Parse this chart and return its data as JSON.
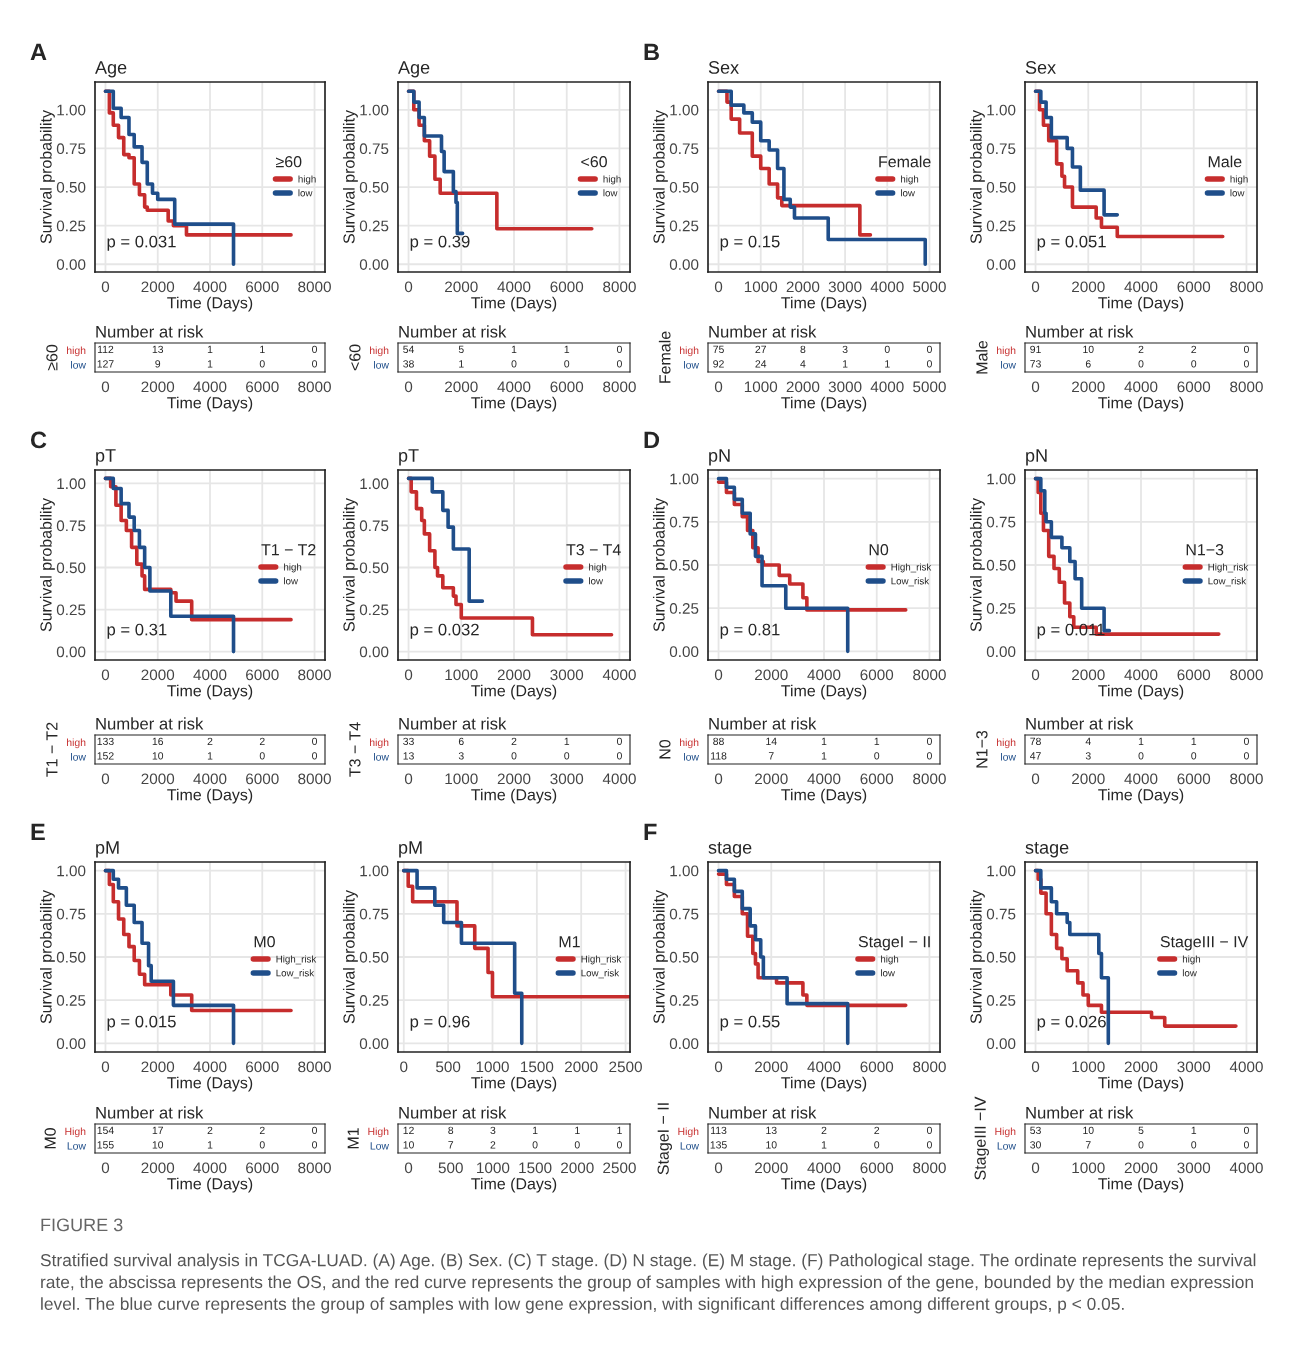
{
  "chart_data": [
    {
      "type": "step",
      "title": "Age",
      "xlabel": "Time (Days)",
      "ylabel": "Survival probability",
      "legend_title": "≥60",
      "legend": "right",
      "grid": true,
      "annotations": [
        "A",
        "p = 0.031"
      ],
      "xlim": [
        -400,
        8400
      ],
      "xticks": [
        0,
        2000,
        4000,
        6000,
        8000
      ],
      "ylim": [
        -0.05,
        1.18
      ],
      "yticks": [
        {
          "value": 0,
          "label": "0.00"
        },
        {
          "value": 0.25,
          "label": "0.25"
        },
        {
          "value": 0.5,
          "label": "0.50"
        },
        {
          "value": 0.75,
          "label": "0.75"
        },
        {
          "value": 1,
          "label": "1.00"
        }
      ],
      "series": [
        {
          "name": "high",
          "color": "#c62d2d",
          "x": [
            0,
            150,
            300,
            500,
            700,
            900,
            1100,
            1300,
            1500,
            1600,
            2400,
            2600,
            3100,
            7100
          ],
          "values": [
            1.12,
            0.98,
            0.9,
            0.82,
            0.71,
            0.69,
            0.52,
            0.45,
            0.37,
            0.35,
            0.28,
            0.25,
            0.19,
            0.19
          ]
        },
        {
          "name": "low",
          "color": "#1f4e8a",
          "x": [
            0,
            300,
            600,
            900,
            1100,
            1400,
            1600,
            1800,
            2000,
            2650,
            4900
          ],
          "values": [
            1.12,
            1.01,
            0.95,
            0.84,
            0.76,
            0.66,
            0.52,
            0.46,
            0.42,
            0.26,
            0
          ]
        }
      ]
    },
    {
      "type": "step",
      "title": "Age",
      "xlabel": "Time (Days)",
      "ylabel": "Survival probability",
      "legend_title": "<60",
      "legend": "right",
      "grid": true,
      "annotations": [
        "p = 0.39"
      ],
      "xlim": [
        -400,
        8400
      ],
      "xticks": [
        0,
        2000,
        4000,
        6000,
        8000
      ],
      "ylim": [
        -0.05,
        1.18
      ],
      "yticks": [
        {
          "value": 0,
          "label": "0.00"
        },
        {
          "value": 0.25,
          "label": "0.25"
        },
        {
          "value": 0.5,
          "label": "0.50"
        },
        {
          "value": 0.75,
          "label": "0.75"
        },
        {
          "value": 1,
          "label": "1.00"
        }
      ],
      "series": [
        {
          "name": "high",
          "color": "#c62d2d",
          "x": [
            0,
            200,
            400,
            600,
            800,
            1000,
            1200,
            3350,
            6950
          ],
          "values": [
            1.12,
            1.0,
            0.9,
            0.8,
            0.7,
            0.55,
            0.46,
            0.23,
            0.23
          ]
        },
        {
          "name": "low",
          "color": "#1f4e8a",
          "x": [
            0,
            200,
            400,
            600,
            1250,
            1350,
            1700,
            1800,
            1850,
            2050
          ],
          "values": [
            1.12,
            1.05,
            0.95,
            0.83,
            0.73,
            0.6,
            0.47,
            0.4,
            0.2,
            0.2
          ]
        }
      ]
    },
    {
      "type": "step",
      "title": "Sex",
      "xlabel": "Time (Days)",
      "ylabel": "Survival probability",
      "legend_title": "Female",
      "legend": "right",
      "grid": true,
      "annotations": [
        "B",
        "p = 0.15"
      ],
      "xlim": [
        -250,
        5250
      ],
      "xticks": [
        0,
        1000,
        2000,
        3000,
        4000,
        5000
      ],
      "ylim": [
        -0.05,
        1.18
      ],
      "yticks": [
        {
          "value": 0,
          "label": "0.00"
        },
        {
          "value": 0.25,
          "label": "0.25"
        },
        {
          "value": 0.5,
          "label": "0.50"
        },
        {
          "value": 0.75,
          "label": "0.75"
        },
        {
          "value": 1,
          "label": "1.00"
        }
      ],
      "series": [
        {
          "name": "high",
          "color": "#c62d2d",
          "x": [
            0,
            200,
            300,
            500,
            800,
            1000,
            1200,
            1400,
            1500,
            3350,
            3600
          ],
          "values": [
            1.12,
            1.05,
            0.94,
            0.85,
            0.7,
            0.62,
            0.52,
            0.43,
            0.38,
            0.19,
            0.19
          ]
        },
        {
          "name": "low",
          "color": "#1f4e8a",
          "x": [
            0,
            300,
            600,
            800,
            1000,
            1200,
            1400,
            1550,
            1700,
            1800,
            2600,
            4900
          ],
          "values": [
            1.12,
            1.03,
            0.98,
            0.92,
            0.8,
            0.74,
            0.62,
            0.42,
            0.37,
            0.3,
            0.16,
            0
          ]
        }
      ]
    },
    {
      "type": "step",
      "title": "Sex",
      "xlabel": "Time (Days)",
      "ylabel": "Survival probability",
      "legend_title": "Male",
      "legend": "right",
      "grid": true,
      "annotations": [
        "p = 0.051"
      ],
      "xlim": [
        -400,
        8400
      ],
      "xticks": [
        0,
        2000,
        4000,
        6000,
        8000
      ],
      "ylim": [
        -0.05,
        1.18
      ],
      "yticks": [
        {
          "value": 0,
          "label": "0.00"
        },
        {
          "value": 0.25,
          "label": "0.25"
        },
        {
          "value": 0.5,
          "label": "0.50"
        },
        {
          "value": 0.75,
          "label": "0.75"
        },
        {
          "value": 1,
          "label": "1.00"
        }
      ],
      "series": [
        {
          "name": "high",
          "color": "#c62d2d",
          "x": [
            0,
            150,
            300,
            500,
            800,
            1000,
            1100,
            1400,
            2300,
            2500,
            3100,
            7100
          ],
          "values": [
            1.12,
            1.0,
            0.9,
            0.8,
            0.65,
            0.57,
            0.5,
            0.37,
            0.3,
            0.24,
            0.18,
            0.18
          ]
        },
        {
          "name": "low",
          "color": "#1f4e8a",
          "x": [
            0,
            200,
            400,
            600,
            1200,
            1400,
            1700,
            2600,
            3100
          ],
          "values": [
            1.12,
            1.05,
            0.95,
            0.82,
            0.75,
            0.63,
            0.48,
            0.32,
            0.32
          ]
        }
      ]
    },
    {
      "type": "heatmap",
      "title": "Number at risk",
      "xlabel": "Time (Days)",
      "ylabel": "≥60",
      "categories": [
        "0",
        "2000",
        "4000",
        "6000",
        "8000"
      ],
      "color": "#ffffff",
      "data_labels": true,
      "y_categories": [
        "high",
        "low"
      ],
      "colors": [
        "#c62d2d",
        "#1f4e8a"
      ],
      "cells": [
        [
          112,
          13,
          1,
          1,
          0
        ],
        [
          127,
          9,
          1,
          0,
          0
        ]
      ]
    },
    {
      "type": "heatmap",
      "title": "Number at risk",
      "xlabel": "Time (Days)",
      "ylabel": "<60",
      "categories": [
        "0",
        "2000",
        "4000",
        "6000",
        "8000"
      ],
      "color": "#ffffff",
      "data_labels": true,
      "y_categories": [
        "high",
        "low"
      ],
      "colors": [
        "#c62d2d",
        "#1f4e8a"
      ],
      "cells": [
        [
          54,
          5,
          1,
          1,
          0
        ],
        [
          38,
          1,
          0,
          0,
          0
        ]
      ]
    },
    {
      "type": "heatmap",
      "title": "Number at risk",
      "xlabel": "Time (Days)",
      "ylabel": "Female",
      "categories": [
        "0",
        "1000",
        "2000",
        "3000",
        "4000",
        "5000"
      ],
      "color": "#ffffff",
      "data_labels": true,
      "y_categories": [
        "high",
        "low"
      ],
      "colors": [
        "#c62d2d",
        "#1f4e8a"
      ],
      "cells": [
        [
          75,
          27,
          8,
          3,
          0,
          0
        ],
        [
          92,
          24,
          4,
          1,
          1,
          0
        ]
      ]
    },
    {
      "type": "heatmap",
      "title": "Number at risk",
      "xlabel": "Time (Days)",
      "ylabel": "Male",
      "categories": [
        "0",
        "2000",
        "4000",
        "6000",
        "8000"
      ],
      "color": "#ffffff",
      "data_labels": true,
      "y_categories": [
        "high",
        "low"
      ],
      "colors": [
        "#c62d2d",
        "#1f4e8a"
      ],
      "cells": [
        [
          91,
          10,
          2,
          2,
          0
        ],
        [
          73,
          6,
          0,
          0,
          0
        ]
      ]
    },
    {
      "type": "step",
      "title": "pT",
      "xlabel": "Time (Days)",
      "ylabel": "Survival probability",
      "legend_title": "T1 − T2",
      "legend": "right",
      "grid": true,
      "annotations": [
        "C",
        "p = 0.31"
      ],
      "xlim": [
        -400,
        8400
      ],
      "xticks": [
        0,
        2000,
        4000,
        6000,
        8000
      ],
      "ylim": [
        -0.05,
        1.08
      ],
      "yticks": [
        {
          "value": 0,
          "label": "0.00"
        },
        {
          "value": 0.25,
          "label": "0.25"
        },
        {
          "value": 0.5,
          "label": "0.50"
        },
        {
          "value": 0.75,
          "label": "0.75"
        },
        {
          "value": 1,
          "label": "1.00"
        }
      ],
      "series": [
        {
          "name": "high",
          "color": "#c62d2d",
          "x": [
            0,
            200,
            400,
            600,
            800,
            1000,
            1200,
            1400,
            1500,
            2500,
            2700,
            3300,
            7100
          ],
          "values": [
            1.03,
            0.98,
            0.87,
            0.78,
            0.72,
            0.62,
            0.52,
            0.45,
            0.37,
            0.35,
            0.3,
            0.19,
            0.19
          ]
        },
        {
          "name": "low",
          "color": "#1f4e8a",
          "x": [
            0,
            300,
            600,
            900,
            1100,
            1300,
            1500,
            1700,
            2500,
            4900
          ],
          "values": [
            1.03,
            0.97,
            0.88,
            0.8,
            0.72,
            0.62,
            0.5,
            0.36,
            0.21,
            0
          ]
        }
      ]
    },
    {
      "type": "step",
      "title": "pT",
      "xlabel": "Time (Days)",
      "ylabel": "Survival probability",
      "legend_title": "T3 − T4",
      "legend": "right",
      "grid": true,
      "annotations": [
        "p = 0.032"
      ],
      "xlim": [
        -200,
        4200
      ],
      "xticks": [
        0,
        1000,
        2000,
        3000,
        4000
      ],
      "ylim": [
        -0.05,
        1.08
      ],
      "yticks": [
        {
          "value": 0,
          "label": "0.00"
        },
        {
          "value": 0.25,
          "label": "0.25"
        },
        {
          "value": 0.5,
          "label": "0.50"
        },
        {
          "value": 0.75,
          "label": "0.75"
        },
        {
          "value": 1,
          "label": "1.00"
        }
      ],
      "series": [
        {
          "name": "high",
          "color": "#c62d2d",
          "x": [
            0,
            50,
            150,
            250,
            300,
            400,
            500,
            550,
            650,
            850,
            900,
            1000,
            2350,
            3850
          ],
          "values": [
            1.03,
            0.95,
            0.85,
            0.78,
            0.7,
            0.6,
            0.5,
            0.45,
            0.38,
            0.33,
            0.28,
            0.2,
            0.1,
            0.1
          ]
        },
        {
          "name": "low",
          "color": "#1f4e8a",
          "x": [
            0,
            450,
            650,
            750,
            850,
            1150,
            1400
          ],
          "values": [
            1.03,
            0.95,
            0.84,
            0.74,
            0.61,
            0.3,
            0.3
          ]
        }
      ]
    },
    {
      "type": "step",
      "title": "pN",
      "xlabel": "Time (Days)",
      "ylabel": "Survival probability",
      "legend_title": "N0",
      "legend": "right",
      "grid": true,
      "annotations": [
        "D",
        "p = 0.81"
      ],
      "xlim": [
        -400,
        8400
      ],
      "xticks": [
        0,
        2000,
        4000,
        6000,
        8000
      ],
      "ylim": [
        -0.05,
        1.05
      ],
      "yticks": [
        {
          "value": 0,
          "label": "0.00"
        },
        {
          "value": 0.25,
          "label": "0.25"
        },
        {
          "value": 0.5,
          "label": "0.50"
        },
        {
          "value": 0.75,
          "label": "0.75"
        },
        {
          "value": 1,
          "label": "1.00"
        }
      ],
      "series": [
        {
          "name": "High_risk",
          "color": "#c62d2d",
          "x": [
            0,
            300,
            600,
            900,
            1100,
            1300,
            1500,
            1700,
            2300,
            2700,
            3200,
            3350,
            7100
          ],
          "values": [
            0.98,
            0.92,
            0.85,
            0.78,
            0.7,
            0.6,
            0.52,
            0.5,
            0.44,
            0.39,
            0.31,
            0.24,
            0.24
          ]
        },
        {
          "name": "Low_risk",
          "color": "#1f4e8a",
          "x": [
            0,
            300,
            600,
            900,
            1200,
            1400,
            1650,
            2550,
            4900
          ],
          "values": [
            1.0,
            0.95,
            0.88,
            0.8,
            0.68,
            0.55,
            0.38,
            0.25,
            0
          ]
        }
      ]
    },
    {
      "type": "step",
      "title": "pN",
      "xlabel": "Time (Days)",
      "ylabel": "Survival probability",
      "legend_title": "N1−3",
      "legend": "right",
      "grid": true,
      "annotations": [
        "p = 0.011"
      ],
      "xlim": [
        -400,
        8400
      ],
      "xticks": [
        0,
        2000,
        4000,
        6000,
        8000
      ],
      "ylim": [
        -0.05,
        1.05
      ],
      "yticks": [
        {
          "value": 0,
          "label": "0.00"
        },
        {
          "value": 0.25,
          "label": "0.25"
        },
        {
          "value": 0.5,
          "label": "0.50"
        },
        {
          "value": 0.75,
          "label": "0.75"
        },
        {
          "value": 1,
          "label": "1.00"
        }
      ],
      "series": [
        {
          "name": "High_risk",
          "color": "#c62d2d",
          "x": [
            0,
            100,
            200,
            300,
            500,
            700,
            900,
            1100,
            1300,
            1450,
            2300,
            6950
          ],
          "values": [
            1.0,
            0.92,
            0.8,
            0.7,
            0.55,
            0.48,
            0.4,
            0.28,
            0.2,
            0.14,
            0.1,
            0.1
          ]
        },
        {
          "name": "Low_risk",
          "color": "#1f4e8a",
          "x": [
            0,
            200,
            350,
            400,
            600,
            1000,
            1300,
            1500,
            1750,
            2600,
            2800
          ],
          "values": [
            1.0,
            0.93,
            0.8,
            0.75,
            0.66,
            0.6,
            0.52,
            0.42,
            0.25,
            0.12,
            0.12
          ]
        }
      ]
    },
    {
      "type": "heatmap",
      "title": "Number at risk",
      "xlabel": "Time (Days)",
      "ylabel": "T1 − T2",
      "categories": [
        "0",
        "2000",
        "4000",
        "6000",
        "8000"
      ],
      "color": "#ffffff",
      "data_labels": true,
      "y_categories": [
        "high",
        "low"
      ],
      "colors": [
        "#c62d2d",
        "#1f4e8a"
      ],
      "cells": [
        [
          133,
          16,
          2,
          2,
          0
        ],
        [
          152,
          10,
          1,
          0,
          0
        ]
      ]
    },
    {
      "type": "heatmap",
      "title": "Number at risk",
      "xlabel": "Time (Days)",
      "ylabel": "T3 − T4",
      "categories": [
        "0",
        "1000",
        "2000",
        "3000",
        "4000"
      ],
      "color": "#ffffff",
      "data_labels": true,
      "y_categories": [
        "high",
        "low"
      ],
      "colors": [
        "#c62d2d",
        "#1f4e8a"
      ],
      "cells": [
        [
          33,
          6,
          2,
          1,
          0
        ],
        [
          13,
          3,
          0,
          0,
          0
        ]
      ]
    },
    {
      "type": "heatmap",
      "title": "Number at risk",
      "xlabel": "Time (Days)",
      "ylabel": "N0",
      "categories": [
        "0",
        "2000",
        "4000",
        "6000",
        "8000"
      ],
      "color": "#ffffff",
      "data_labels": true,
      "y_categories": [
        "high",
        "low"
      ],
      "colors": [
        "#c62d2d",
        "#1f4e8a"
      ],
      "cells": [
        [
          88,
          14,
          1,
          1,
          0
        ],
        [
          118,
          7,
          1,
          0,
          0
        ]
      ]
    },
    {
      "type": "heatmap",
      "title": "Number at risk",
      "xlabel": "Time (Days)",
      "ylabel": "N1−3",
      "categories": [
        "0",
        "2000",
        "4000",
        "6000",
        "8000"
      ],
      "color": "#ffffff",
      "data_labels": true,
      "y_categories": [
        "high",
        "low"
      ],
      "colors": [
        "#c62d2d",
        "#1f4e8a"
      ],
      "cells": [
        [
          78,
          4,
          1,
          1,
          0
        ],
        [
          47,
          3,
          0,
          0,
          0
        ]
      ]
    },
    {
      "type": "step",
      "title": "pM",
      "xlabel": "Time (Days)",
      "ylabel": "Survival probability",
      "legend_title": "M0",
      "legend": "right",
      "grid": true,
      "annotations": [
        "E",
        "p = 0.015"
      ],
      "xlim": [
        -400,
        8400
      ],
      "xticks": [
        0,
        2000,
        4000,
        6000,
        8000
      ],
      "ylim": [
        -0.05,
        1.05
      ],
      "yticks": [
        {
          "value": 0,
          "label": "0.00"
        },
        {
          "value": 0.25,
          "label": "0.25"
        },
        {
          "value": 0.5,
          "label": "0.50"
        },
        {
          "value": 0.75,
          "label": "0.75"
        },
        {
          "value": 1,
          "label": "1.00"
        }
      ],
      "series": [
        {
          "name": "High_risk",
          "color": "#c62d2d",
          "x": [
            0,
            150,
            300,
            500,
            700,
            900,
            1100,
            1300,
            1500,
            2500,
            3300,
            7100
          ],
          "values": [
            1.0,
            0.92,
            0.82,
            0.72,
            0.63,
            0.56,
            0.48,
            0.4,
            0.34,
            0.28,
            0.19,
            0.19
          ]
        },
        {
          "name": "Low_risk",
          "color": "#1f4e8a",
          "x": [
            0,
            300,
            500,
            800,
            1100,
            1400,
            1650,
            1750,
            2600,
            4900
          ],
          "values": [
            1.0,
            0.95,
            0.9,
            0.8,
            0.7,
            0.58,
            0.45,
            0.36,
            0.22,
            0
          ]
        }
      ]
    },
    {
      "type": "step",
      "title": "pM",
      "xlabel": "Time (Days)",
      "ylabel": "Survival probability",
      "legend_title": "M1",
      "legend": "right",
      "grid": true,
      "annotations": [
        "p = 0.96"
      ],
      "xlim": [
        -65,
        2550
      ],
      "xticks": [
        0,
        500,
        1000,
        1500,
        2000,
        2500
      ],
      "ylim": [
        -0.05,
        1.05
      ],
      "yticks": [
        {
          "value": 0,
          "label": "0.00"
        },
        {
          "value": 0.25,
          "label": "0.25"
        },
        {
          "value": 0.5,
          "label": "0.50"
        },
        {
          "value": 0.75,
          "label": "0.75"
        },
        {
          "value": 1,
          "label": "1.00"
        }
      ],
      "series": [
        {
          "name": "High_risk",
          "color": "#c62d2d",
          "x": [
            0,
            50,
            100,
            600,
            800,
            950,
            1000,
            2550
          ],
          "values": [
            1.0,
            0.91,
            0.82,
            0.68,
            0.55,
            0.41,
            0.27,
            0.27
          ]
        },
        {
          "name": "Low_risk",
          "color": "#1f4e8a",
          "x": [
            0,
            150,
            350,
            450,
            650,
            1250,
            1330
          ],
          "values": [
            1.0,
            0.9,
            0.8,
            0.7,
            0.58,
            0.29,
            0
          ]
        }
      ]
    },
    {
      "type": "step",
      "title": "stage",
      "xlabel": "Time (Days)",
      "ylabel": "Survival probability",
      "legend_title": "StageI − II",
      "legend": "right",
      "grid": true,
      "annotations": [
        "F",
        "p = 0.55"
      ],
      "xlim": [
        -400,
        8400
      ],
      "xticks": [
        0,
        2000,
        4000,
        6000,
        8000
      ],
      "ylim": [
        -0.05,
        1.05
      ],
      "yticks": [
        {
          "value": 0,
          "label": "0.00"
        },
        {
          "value": 0.25,
          "label": "0.25"
        },
        {
          "value": 0.5,
          "label": "0.50"
        },
        {
          "value": 0.75,
          "label": "0.75"
        },
        {
          "value": 1,
          "label": "1.00"
        }
      ],
      "series": [
        {
          "name": "high",
          "color": "#c62d2d",
          "x": [
            0,
            300,
            600,
            900,
            1100,
            1300,
            1400,
            1500,
            2200,
            3200,
            3350,
            7100
          ],
          "values": [
            0.98,
            0.92,
            0.85,
            0.75,
            0.62,
            0.52,
            0.46,
            0.38,
            0.35,
            0.28,
            0.22,
            0.22
          ]
        },
        {
          "name": "low",
          "color": "#1f4e8a",
          "x": [
            0,
            300,
            600,
            900,
            1200,
            1400,
            1600,
            1700,
            2600,
            4900
          ],
          "values": [
            1.0,
            0.95,
            0.88,
            0.78,
            0.68,
            0.6,
            0.5,
            0.38,
            0.23,
            0
          ]
        }
      ]
    },
    {
      "type": "step",
      "title": "stage",
      "xlabel": "Time (Days)",
      "ylabel": "Survival probability",
      "legend_title": "StageIII − IV",
      "legend": "right",
      "grid": true,
      "annotations": [
        "p = 0.026"
      ],
      "xlim": [
        -200,
        4200
      ],
      "xticks": [
        0,
        1000,
        2000,
        3000,
        4000
      ],
      "ylim": [
        -0.05,
        1.05
      ],
      "yticks": [
        {
          "value": 0,
          "label": "0.00"
        },
        {
          "value": 0.25,
          "label": "0.25"
        },
        {
          "value": 0.5,
          "label": "0.50"
        },
        {
          "value": 0.75,
          "label": "0.75"
        },
        {
          "value": 1,
          "label": "1.00"
        }
      ],
      "series": [
        {
          "name": "high",
          "color": "#c62d2d",
          "x": [
            0,
            50,
            100,
            200,
            300,
            400,
            500,
            600,
            800,
            900,
            1000,
            1250,
            2200,
            2450,
            3800
          ],
          "values": [
            1.0,
            0.95,
            0.87,
            0.75,
            0.63,
            0.55,
            0.49,
            0.42,
            0.35,
            0.28,
            0.22,
            0.18,
            0.15,
            0.1,
            0.1
          ]
        },
        {
          "name": "low",
          "color": "#1f4e8a",
          "x": [
            0,
            100,
            300,
            400,
            600,
            650,
            1200,
            1250,
            1380
          ],
          "values": [
            1.0,
            0.9,
            0.82,
            0.75,
            0.7,
            0.63,
            0.52,
            0.38,
            0
          ]
        }
      ]
    },
    {
      "type": "heatmap",
      "title": "Number at risk",
      "xlabel": "Time (Days)",
      "ylabel": "M0",
      "categories": [
        "0",
        "2000",
        "4000",
        "6000",
        "8000"
      ],
      "color": "#ffffff",
      "data_labels": true,
      "y_categories": [
        "High",
        "Low"
      ],
      "colors": [
        "#c62d2d",
        "#1f4e8a"
      ],
      "cells": [
        [
          154,
          17,
          2,
          2,
          0
        ],
        [
          155,
          10,
          1,
          0,
          0
        ]
      ]
    },
    {
      "type": "heatmap",
      "title": "Number at risk",
      "xlabel": "Time (Days)",
      "ylabel": "M1",
      "categories": [
        "0",
        "500",
        "1000",
        "1500",
        "2000",
        "2500"
      ],
      "color": "#ffffff",
      "data_labels": true,
      "y_categories": [
        "High",
        "Low"
      ],
      "colors": [
        "#c62d2d",
        "#1f4e8a"
      ],
      "cells": [
        [
          12,
          8,
          3,
          1,
          1,
          1
        ],
        [
          10,
          7,
          2,
          0,
          0,
          0
        ]
      ]
    },
    {
      "type": "heatmap",
      "title": "Number at risk",
      "xlabel": "Time (Days)",
      "ylabel": "StageI − II",
      "categories": [
        "0",
        "2000",
        "4000",
        "6000",
        "8000"
      ],
      "color": "#ffffff",
      "data_labels": true,
      "y_categories": [
        "High",
        "Low"
      ],
      "colors": [
        "#c62d2d",
        "#1f4e8a"
      ],
      "cells": [
        [
          113,
          13,
          2,
          2,
          0
        ],
        [
          135,
          10,
          1,
          0,
          0
        ]
      ]
    },
    {
      "type": "heatmap",
      "title": "Number at risk",
      "xlabel": "Time (Days)",
      "ylabel": "StageIII −IV",
      "categories": [
        "0",
        "1000",
        "2000",
        "3000",
        "4000"
      ],
      "color": "#ffffff",
      "data_labels": true,
      "y_categories": [
        "High",
        "Low"
      ],
      "colors": [
        "#c62d2d",
        "#1f4e8a"
      ],
      "cells": [
        [
          53,
          10,
          5,
          1,
          0
        ],
        [
          30,
          7,
          0,
          0,
          0
        ]
      ]
    },
    {
      "type": "other",
      "annotations": [
        "FIGURE 3",
        "Stratified survival analysis in TCGA-LUAD. (A) Age. (B) Sex. (C) T stage. (D) N stage. (E) M stage. (F) Pathological stage. The ordinate represents the survival rate, the abscissa represents the OS, and the red curve represents the group of samples with high expression of the gene, bounded by the median expression level. The blue curve represents the group of samples with low gene expression, with significant differences among different groups, p < 0.05."
      ]
    }
  ]
}
